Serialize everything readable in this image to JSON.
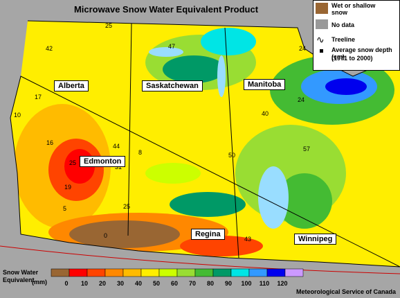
{
  "title": "Microwave Snow Water Equivalent Product",
  "legend": {
    "wet": "Wet or shallow snow",
    "no_data": "No data",
    "treeline": "Treeline",
    "depth": "Average snow depth (cm)",
    "period": "(1971 to 2000)"
  },
  "provinces": [
    "Alberta",
    "Saskatchewan",
    "Manitoba"
  ],
  "cities": [
    "Edmonton",
    "Regina",
    "Winnipeg"
  ],
  "stations": [
    25,
    42,
    47,
    24,
    17,
    10,
    24,
    40,
    16,
    44,
    8,
    57,
    50,
    25,
    31,
    19,
    5,
    25,
    0,
    43
  ],
  "scale": {
    "title": "Snow Water Equivalent",
    "unit": "(mm)",
    "ticks": [
      0,
      10,
      20,
      30,
      40,
      50,
      60,
      70,
      80,
      90,
      100,
      110,
      120
    ],
    "colors": [
      "#996633",
      "#ff0000",
      "#ff4400",
      "#ff8800",
      "#ffbb00",
      "#ffee00",
      "#ccff00",
      "#99dd33",
      "#44bb33",
      "#009966",
      "#00e5e5",
      "#3399ff",
      "#0000ee",
      "#cc99ff"
    ]
  },
  "credit": "Meteorological Service of Canada"
}
